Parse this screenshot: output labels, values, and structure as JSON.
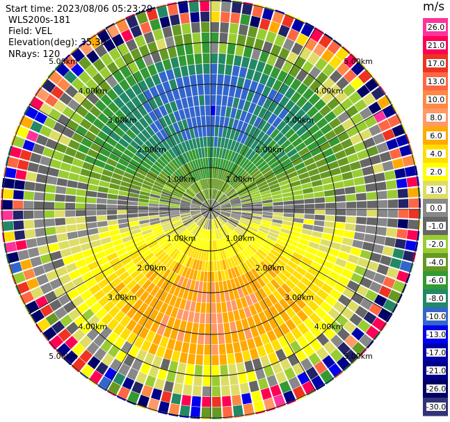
{
  "header": {
    "start_time": "Start time: 2023/08/06 05:23:29",
    "station": "WLS200s-181",
    "field": "Field: VEL",
    "elevation": "Elevation(deg): 35.30",
    "nrays": "NRays: 120"
  },
  "colorbar": {
    "unit": "m/s",
    "ticks": [
      "26.0",
      "21.0",
      "17.0",
      "13.0",
      "10.0",
      "8.0",
      "6.0",
      "4.0",
      "2.0",
      "1.0",
      "0.0",
      "-1.0",
      "-2.0",
      "-4.0",
      "-6.0",
      "-8.0",
      "-10.0",
      "-13.0",
      "-17.0",
      "-21.0",
      "-26.0",
      "-30.0"
    ],
    "colors": [
      "#ff3399",
      "#ff0055",
      "#ee3322",
      "#ff6644",
      "#ff8844",
      "#ff9966",
      "#ffaa00",
      "#ffdd00",
      "#ffff00",
      "#dddd66",
      "#888888",
      "#666666",
      "#99cc33",
      "#669922",
      "#339933",
      "#228866",
      "#3366cc",
      "#0000ee",
      "#0000aa",
      "#000088",
      "#000066",
      "#333377"
    ]
  },
  "chart_data": {
    "type": "ppi",
    "title": "",
    "field": "VEL",
    "unit": "m/s",
    "nrays": 120,
    "elevation_deg": 35.3,
    "range_rings_km": [
      1,
      2,
      3,
      4,
      5
    ],
    "range_labels": [
      "1.00km",
      "2.00km",
      "3.00km",
      "4.00km",
      "5.00km"
    ],
    "spoke_angles_deg": [
      0,
      30,
      60,
      90,
      120,
      150,
      180,
      210,
      240,
      270,
      300,
      330
    ],
    "vlim": [
      -30,
      30
    ],
    "velocity_pattern": {
      "approaching_max_mps": 9,
      "receding_max_mps": 8,
      "noisy_beyond_km": 4.5
    }
  }
}
